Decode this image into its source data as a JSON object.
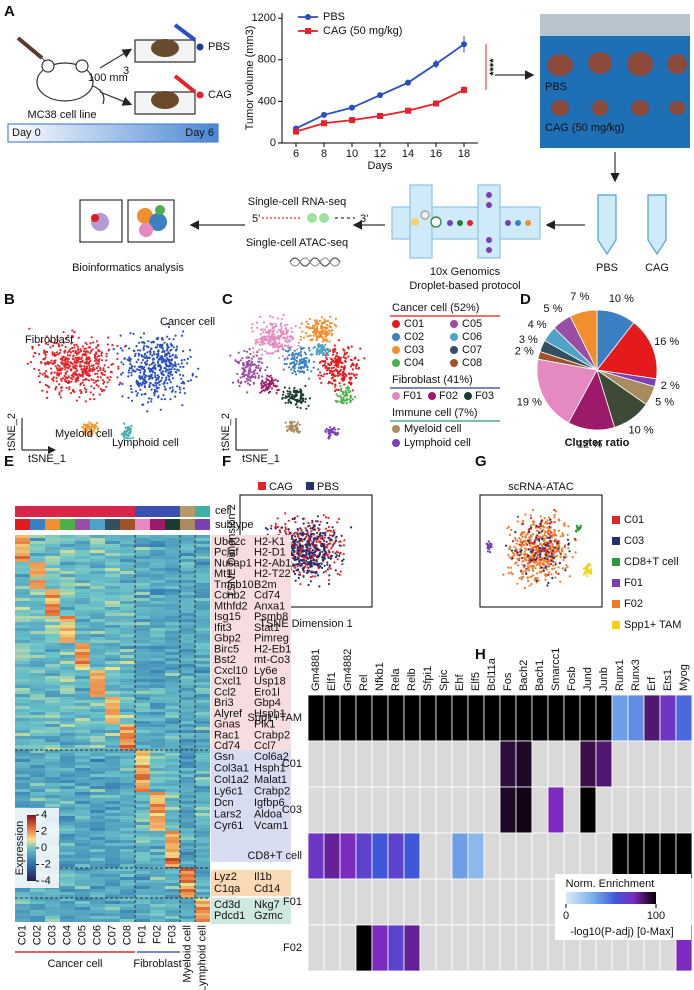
{
  "panel_labels": [
    "A",
    "B",
    "C",
    "D",
    "E",
    "F",
    "G",
    "H"
  ],
  "panel_a": {
    "dose": "100 mm",
    "dose_sup": "3",
    "cell_line": "MC38 cell line",
    "groups": [
      "PBS",
      "CAG"
    ],
    "day_start": "Day 0",
    "day_end": "Day 6",
    "photo_labels": [
      "PBS",
      "CAG (50 mg/kg)"
    ],
    "tubes": [
      "PBS",
      "CAG"
    ],
    "platform": [
      "10x Genomics",
      "Droplet-based protocol"
    ],
    "assays": [
      "Single-cell RNA-seq",
      "Single-cell ATAC-seq"
    ],
    "primer": [
      "5'",
      "3'"
    ],
    "bioinfo": "Bioinformatics analysis"
  },
  "panel_b": {
    "labels": [
      "Cancer cell",
      "Fibroblast",
      "Myeloid cell",
      "Lymphoid cell"
    ],
    "ylabel": "tSNE_2",
    "xlabel": "tSNE_1"
  },
  "panel_c": {
    "ylabel": "tSNE_2",
    "xlabel": "tSNE_1",
    "legend_groups": [
      {
        "title": "Cancer cell (52%)",
        "items": [
          "C01",
          "C02",
          "C03",
          "C04",
          "C05",
          "C06",
          "C07",
          "C08"
        ]
      },
      {
        "title": "Fibroblast (41%)",
        "items": [
          "F01",
          "F02",
          "F03"
        ]
      },
      {
        "title": "Immune cell (7%)",
        "items": [
          "Myeloid cell",
          "Lymphoid cell"
        ]
      }
    ]
  },
  "panel_e": {
    "annotation_rows": [
      "cell",
      "subtype"
    ],
    "columns": [
      "C01",
      "C02",
      "C03",
      "C04",
      "C05",
      "C06",
      "C07",
      "C08",
      "F01",
      "F02",
      "F03",
      "Myeloid cell",
      "Lymphoid cell"
    ],
    "groups": [
      "Cancer cell",
      "Fibroblast"
    ],
    "gene_blocks": [
      [
        [
          "Ube2c",
          "H2-K1"
        ],
        [
          "Pclaf",
          "H2-D1"
        ],
        [
          "Nusap1",
          "H2-Ab1"
        ],
        [
          "Mt1",
          "H2-T22"
        ],
        [
          "Tmsb10",
          "B2m"
        ],
        [
          "Ccnb2",
          "Cd74"
        ],
        [
          "Mthfd2",
          "Anxa1"
        ],
        [
          "Isg15",
          "Psmb8"
        ],
        [
          "Ifit3",
          "Stat1"
        ],
        [
          "Gbp2",
          "Pimreg"
        ],
        [
          "Birc5",
          "H2-Eb1"
        ],
        [
          "Bst2",
          "mt-Co3"
        ],
        [
          "Cxcl10",
          "Ly6e"
        ],
        [
          "Cxcl1",
          "Usp18"
        ],
        [
          "Ccl2",
          "Ero1l"
        ],
        [
          "Bri3",
          "Gbp4"
        ],
        [
          "Alyref",
          "Hsph1"
        ],
        [
          "Gnas",
          "Plk1"
        ],
        [
          "Rac1",
          "Crabp2"
        ],
        [
          "Cd74",
          "Ccl7"
        ]
      ],
      [
        [
          "Gsn",
          "Col6a2"
        ],
        [
          "Col3a1",
          "Hsph1"
        ],
        [
          "Col1a2",
          "Malat1"
        ],
        [
          "Ly6c1",
          "Crabp2"
        ],
        [
          "Dcn",
          "Igfbp6"
        ],
        [
          "Lars2",
          "Aldoa"
        ],
        [
          "Cyr61",
          "Vcam1"
        ]
      ],
      [
        [
          "Lyz2",
          "Il1b"
        ],
        [
          "C1qa",
          "Cd14"
        ]
      ],
      [
        [
          "Cd3d",
          "Nkg7"
        ],
        [
          "Pdcd1",
          "Gzmc"
        ]
      ]
    ],
    "colorbar": {
      "title": "Expression",
      "ticks": [
        4,
        2,
        0,
        -2,
        -4
      ]
    }
  },
  "panel_f": {
    "legend": [
      "CAG",
      "PBS"
    ],
    "ylabel": "TSNE Dimension 2",
    "xlabel": "TSNE Dimension 1"
  },
  "panel_g": {
    "title": "scRNA-ATAC",
    "legend": [
      "C01",
      "C03",
      "CD8+T cell",
      "F01",
      "F02",
      "Spp1+ TAM"
    ]
  },
  "chart_data": [
    {
      "type": "line",
      "xlabel": "Days",
      "ylabel": "Tumor volume (mm3)",
      "x": [
        6,
        8,
        10,
        12,
        14,
        16,
        18
      ],
      "series": [
        {
          "name": "PBS",
          "color": "#2a4fc4",
          "values": [
            140,
            270,
            340,
            460,
            580,
            760,
            950
          ],
          "errors": [
            15,
            25,
            25,
            25,
            30,
            40,
            80
          ]
        },
        {
          "name": "CAG (50 mg/kg)",
          "color": "#e8202a",
          "values": [
            110,
            190,
            220,
            260,
            310,
            380,
            510
          ],
          "errors": [
            10,
            15,
            15,
            15,
            20,
            25,
            35
          ]
        }
      ],
      "xlim": [
        5,
        19
      ],
      "ylim": [
        0,
        1250
      ],
      "xticks": [
        6,
        8,
        10,
        12,
        14,
        16,
        18
      ],
      "yticks": [
        0,
        400,
        800,
        1200
      ],
      "annotation": "****",
      "annotation_color": "#e8202a"
    },
    {
      "type": "pie",
      "title": "Cluster ratio",
      "values": [
        10,
        16,
        2,
        5,
        10,
        12,
        19,
        2,
        3,
        4,
        5,
        7
      ],
      "value_labels": [
        "10 %",
        "16 %",
        "2 %",
        "5 %",
        "10 %",
        "12 %",
        "19 %",
        "2 %",
        "3 %",
        "4 %",
        "5 %",
        "7 %"
      ],
      "colors": [
        "#3b7fc4",
        "#e41a1c",
        "#7b3fb5",
        "#a88b5f",
        "#3d4a35",
        "#9b1b6a",
        "#e58ac0",
        "#a0522d",
        "#33505e",
        "#4fa3c7",
        "#984ea3",
        "#f28e2b"
      ]
    },
    {
      "type": "heatmap",
      "columns": [
        "Gm4881",
        "Elf1",
        "Gm4882",
        "Rel",
        "Nfkb1",
        "Rela",
        "Relb",
        "Sfpi1",
        "Spic",
        "Ehf",
        "Elf5",
        "Bcl11a",
        "Fos",
        "Bach2",
        "Bach1",
        "Smarcc1",
        "Fosb",
        "Jund",
        "Junb",
        "Runx1",
        "Runx3",
        "Erf",
        "Ets1",
        "Myog"
      ],
      "rows": [
        "Spp1+TAM",
        "C01",
        "C03",
        "CD8+T cell",
        "F01",
        "F02"
      ],
      "values": [
        [
          100,
          100,
          100,
          100,
          100,
          100,
          100,
          100,
          100,
          100,
          100,
          100,
          100,
          100,
          100,
          100,
          100,
          100,
          100,
          35,
          40,
          85,
          70,
          50
        ],
        [
          null,
          null,
          null,
          null,
          null,
          null,
          null,
          null,
          null,
          null,
          null,
          null,
          92,
          95,
          null,
          null,
          null,
          90,
          85,
          null,
          null,
          null,
          null,
          null
        ],
        [
          null,
          null,
          null,
          null,
          null,
          null,
          null,
          null,
          null,
          null,
          null,
          null,
          95,
          97,
          null,
          75,
          null,
          100,
          null,
          null,
          null,
          null,
          null,
          null
        ],
        [
          70,
          80,
          75,
          65,
          55,
          65,
          55,
          null,
          null,
          35,
          25,
          null,
          null,
          null,
          null,
          null,
          null,
          null,
          null,
          100,
          100,
          100,
          100,
          100
        ],
        [
          null,
          null,
          null,
          null,
          null,
          null,
          null,
          null,
          null,
          null,
          null,
          null,
          null,
          null,
          null,
          null,
          null,
          null,
          null,
          null,
          null,
          null,
          null,
          null
        ],
        [
          null,
          null,
          null,
          100,
          75,
          65,
          80,
          null,
          null,
          null,
          null,
          null,
          null,
          null,
          null,
          null,
          null,
          null,
          null,
          null,
          null,
          null,
          null,
          75
        ]
      ],
      "colorbar_title": "Norm. Enrichment",
      "colorbar_label": "-log10(P-adj) [0-Max]",
      "zlim": [
        0,
        100
      ],
      "zticks": [
        0,
        100
      ]
    }
  ]
}
